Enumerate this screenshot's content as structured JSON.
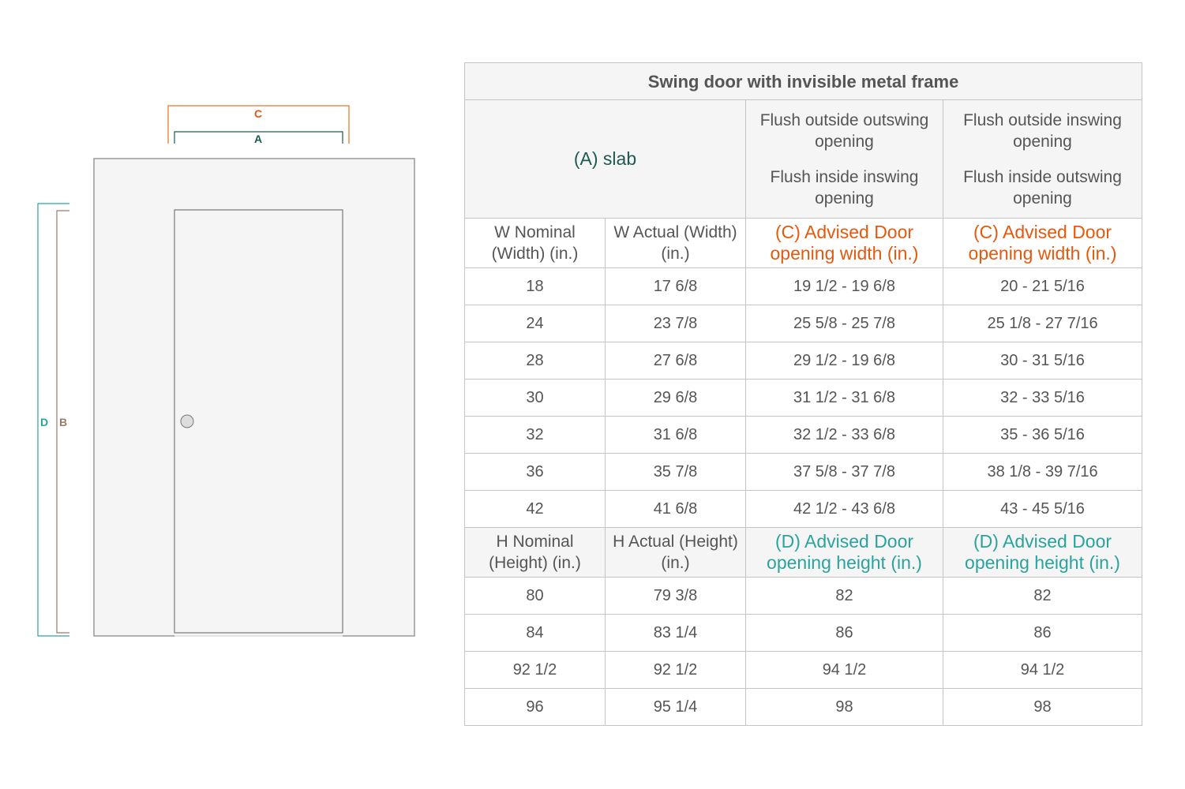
{
  "diagram": {
    "labels": {
      "c": "C",
      "a": "A",
      "d": "D",
      "b": "B"
    },
    "colors": {
      "c": "#f08a4b",
      "a": "#1d5a52",
      "d": "#2aa39c",
      "b": "#9a7a6a",
      "frame": "#f5f5f5",
      "outline": "#999999"
    }
  },
  "table": {
    "title": "Swing door with invisible metal frame",
    "slab_label": "(A) slab",
    "col3_header": [
      "Flush outside outswing opening",
      "Flush inside inswing opening"
    ],
    "col4_header": [
      "Flush outside inswing opening",
      "Flush inside outswing opening"
    ],
    "width_headers": [
      "W Nominal (Width) (in.)",
      "W Actual (Width) (in.)",
      "(C) Advised Door opening width (in.)",
      "(C) Advised Door opening width (in.)"
    ],
    "width_rows": [
      [
        "18",
        "17 6/8",
        "19 1/2 - 19 6/8",
        "20 - 21 5/16"
      ],
      [
        "24",
        "23 7/8",
        "25 5/8 - 25 7/8",
        "25 1/8 - 27 7/16"
      ],
      [
        "28",
        "27 6/8",
        "29 1/2 - 19 6/8",
        "30 - 31 5/16"
      ],
      [
        "30",
        "29 6/8",
        "31 1/2 - 31 6/8",
        "32 - 33 5/16"
      ],
      [
        "32",
        "31 6/8",
        "32 1/2 - 33 6/8",
        "35 -  36 5/16"
      ],
      [
        "36",
        "35 7/8",
        "37 5/8 - 37 7/8",
        "38 1/8 - 39 7/16"
      ],
      [
        "42",
        "41 6/8",
        "42 1/2 - 43 6/8",
        "43 - 45 5/16"
      ]
    ],
    "height_headers": [
      "H Nominal (Height) (in.)",
      "H Actual (Height) (in.)",
      "(D) Advised Door opening height (in.)",
      "(D) Advised Door opening height (in.)"
    ],
    "height_rows": [
      [
        "80",
        "79 3/8",
        "82",
        "82"
      ],
      [
        "84",
        "83 1/4",
        "86",
        "86"
      ],
      [
        "92 1/2",
        "92 1/2",
        "94 1/2",
        "94 1/2"
      ],
      [
        "96",
        "95 1/4",
        "98",
        "98"
      ]
    ]
  }
}
